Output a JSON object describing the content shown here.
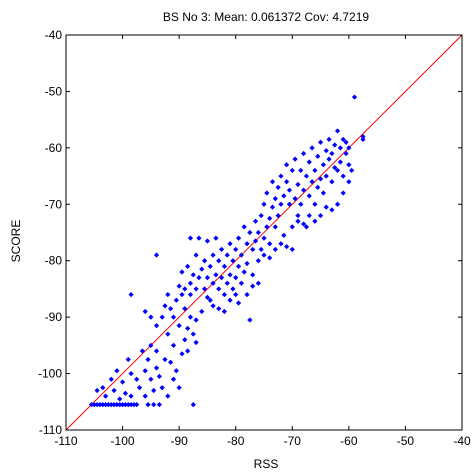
{
  "chart_data": {
    "type": "scatter",
    "title": "BS No 3: Mean: 0.061372 Cov: 4.7219",
    "xlabel": "RSS",
    "ylabel": "SCORE",
    "xlim": [
      -110,
      -40
    ],
    "ylim": [
      -110,
      -40
    ],
    "xticks": [
      -110,
      -100,
      -90,
      -80,
      -70,
      -60,
      -50,
      -40
    ],
    "yticks": [
      -110,
      -100,
      -90,
      -80,
      -70,
      -60,
      -50,
      -40
    ],
    "grid": false,
    "marker_color": "#0000ff",
    "reference_line": {
      "from": [
        -110,
        -110
      ],
      "to": [
        -40,
        -40
      ],
      "color": "#ff0000"
    },
    "points": [
      [
        -105.5,
        -105.5
      ],
      [
        -105,
        -105.5
      ],
      [
        -104.5,
        -105.5
      ],
      [
        -104,
        -105.5
      ],
      [
        -103.5,
        -105.5
      ],
      [
        -103,
        -105.5
      ],
      [
        -102.5,
        -105.5
      ],
      [
        -102,
        -105.5
      ],
      [
        -101.5,
        -105.5
      ],
      [
        -101,
        -105.5
      ],
      [
        -100.5,
        -105.5
      ],
      [
        -100,
        -105.5
      ],
      [
        -99.5,
        -105.5
      ],
      [
        -99,
        -105.5
      ],
      [
        -98.5,
        -105.5
      ],
      [
        -98,
        -105.5
      ],
      [
        -97.5,
        -105.5
      ],
      [
        -95.5,
        -105.5
      ],
      [
        -94.5,
        -105.5
      ],
      [
        -93.5,
        -105.5
      ],
      [
        -87.5,
        -105.5
      ],
      [
        -104.5,
        -103
      ],
      [
        -103.5,
        -102.5
      ],
      [
        -103,
        -104
      ],
      [
        -102,
        -101
      ],
      [
        -101.5,
        -103
      ],
      [
        -100.5,
        -104.5
      ],
      [
        -101,
        -99.5
      ],
      [
        -100,
        -101.5
      ],
      [
        -99.5,
        -103.5
      ],
      [
        -99,
        -97.5
      ],
      [
        -98.5,
        -100
      ],
      [
        -98.5,
        -104
      ],
      [
        -97.5,
        -101
      ],
      [
        -97,
        -102.5
      ],
      [
        -96.5,
        -96
      ],
      [
        -96,
        -99.5
      ],
      [
        -96,
        -104
      ],
      [
        -95.5,
        -97.5
      ],
      [
        -95,
        -101
      ],
      [
        -95,
        -95
      ],
      [
        -94.5,
        -103
      ],
      [
        -94,
        -99
      ],
      [
        -94,
        -96
      ],
      [
        -93.5,
        -100.5
      ],
      [
        -93,
        -102.5
      ],
      [
        -92.5,
        -97.5
      ],
      [
        -92,
        -93
      ],
      [
        -92,
        -104
      ],
      [
        -91.5,
        -98
      ],
      [
        -91,
        -101
      ],
      [
        -91,
        -95
      ],
      [
        -90.5,
        -99.5
      ],
      [
        -90,
        -91.5
      ],
      [
        -90,
        -102.5
      ],
      [
        -89.5,
        -96.5
      ],
      [
        -89,
        -94
      ],
      [
        -89,
        -88.5
      ],
      [
        -88.5,
        -92
      ],
      [
        -88.5,
        -96
      ],
      [
        -88,
        -90
      ],
      [
        -88,
        -86
      ],
      [
        -87.5,
        -93
      ],
      [
        -87,
        -94.5
      ],
      [
        -87,
        -90.5
      ],
      [
        -98.5,
        -86
      ],
      [
        -96,
        -89
      ],
      [
        -95,
        -90
      ],
      [
        -94,
        -91.5
      ],
      [
        -94,
        -79
      ],
      [
        -93,
        -90
      ],
      [
        -92.5,
        -88
      ],
      [
        -92,
        -86
      ],
      [
        -91.5,
        -88.5
      ],
      [
        -91,
        -90
      ],
      [
        -90.5,
        -87
      ],
      [
        -90,
        -84.5
      ],
      [
        -89.5,
        -86
      ],
      [
        -89.5,
        -82
      ],
      [
        -89,
        -85
      ],
      [
        -88.5,
        -81
      ],
      [
        -88,
        -84
      ],
      [
        -88,
        -76
      ],
      [
        -87.5,
        -82.5
      ],
      [
        -87,
        -85
      ],
      [
        -87,
        -79
      ],
      [
        -86.5,
        -83
      ],
      [
        -86.5,
        -76
      ],
      [
        -86,
        -81.5
      ],
      [
        -85.5,
        -85
      ],
      [
        -85.5,
        -80
      ],
      [
        -85,
        -83
      ],
      [
        -85,
        -76.5
      ],
      [
        -84.5,
        -81
      ],
      [
        -84.5,
        -87
      ],
      [
        -84,
        -84
      ],
      [
        -84,
        -79
      ],
      [
        -83.5,
        -82.5
      ],
      [
        -83.5,
        -76
      ],
      [
        -83,
        -80
      ],
      [
        -83,
        -85
      ],
      [
        -82.5,
        -83
      ],
      [
        -82.5,
        -78
      ],
      [
        -82,
        -81
      ],
      [
        -82,
        -86
      ],
      [
        -81.5,
        -79
      ],
      [
        -81.5,
        -84
      ],
      [
        -81,
        -77
      ],
      [
        -81,
        -82.5
      ],
      [
        -80.5,
        -80
      ],
      [
        -80.5,
        -85
      ],
      [
        -80,
        -78
      ],
      [
        -80,
        -83
      ],
      [
        -79.5,
        -76
      ],
      [
        -79.5,
        -81
      ],
      [
        -79,
        -84
      ],
      [
        -79,
        -79
      ],
      [
        -78.5,
        -74
      ],
      [
        -78.5,
        -82
      ],
      [
        -78,
        -77
      ],
      [
        -78,
        -80.5
      ],
      [
        -77.5,
        -75
      ],
      [
        -77.5,
        -90.5
      ],
      [
        -77,
        -78
      ],
      [
        -77,
        -82.5
      ],
      [
        -76.5,
        -73
      ],
      [
        -76.5,
        -76.5
      ],
      [
        -76,
        -80
      ],
      [
        -76,
        -75
      ],
      [
        -75.5,
        -72
      ],
      [
        -75.5,
        -78
      ],
      [
        -75,
        -76
      ],
      [
        -75,
        -70
      ],
      [
        -74.5,
        -74
      ],
      [
        -74.5,
        -68
      ],
      [
        -74,
        -72.5
      ],
      [
        -74,
        -77
      ],
      [
        -73.5,
        -70.5
      ],
      [
        -73.5,
        -66
      ],
      [
        -73,
        -74
      ],
      [
        -73,
        -69
      ],
      [
        -72.5,
        -67
      ],
      [
        -72.5,
        -72
      ],
      [
        -72,
        -65
      ],
      [
        -72,
        -70
      ],
      [
        -71.5,
        -68.5
      ],
      [
        -71.5,
        -75.5
      ],
      [
        -71,
        -66
      ],
      [
        -71,
        -63
      ],
      [
        -70.5,
        -70
      ],
      [
        -70.5,
        -67.5
      ],
      [
        -70,
        -64
      ],
      [
        -70,
        -74
      ],
      [
        -69.5,
        -69
      ],
      [
        -69.5,
        -62
      ],
      [
        -69,
        -66.5
      ],
      [
        -69,
        -72
      ],
      [
        -68.5,
        -64
      ],
      [
        -68.5,
        -70
      ],
      [
        -68,
        -67.5
      ],
      [
        -68,
        -61
      ],
      [
        -67.5,
        -65
      ],
      [
        -67.5,
        -74
      ],
      [
        -67,
        -62.5
      ],
      [
        -67,
        -68.5
      ],
      [
        -66.5,
        -66
      ],
      [
        -66.5,
        -60
      ],
      [
        -66,
        -64
      ],
      [
        -66,
        -70
      ],
      [
        -65.5,
        -61.5
      ],
      [
        -65.5,
        -67
      ],
      [
        -65,
        -59
      ],
      [
        -65,
        -65.5
      ],
      [
        -64.5,
        -63
      ],
      [
        -64.5,
        -68
      ],
      [
        -64,
        -60.5
      ],
      [
        -64,
        -65
      ],
      [
        -63.5,
        -58.5
      ],
      [
        -63.5,
        -62
      ],
      [
        -63,
        -61
      ],
      [
        -63,
        -66
      ],
      [
        -62.5,
        -59.5
      ],
      [
        -62.5,
        -63.5
      ],
      [
        -62,
        -57
      ],
      [
        -62,
        -64
      ],
      [
        -61.5,
        -60
      ],
      [
        -61.5,
        -62.5
      ],
      [
        -61,
        -58.5
      ],
      [
        -61,
        -65
      ],
      [
        -60.5,
        -61
      ],
      [
        -60.5,
        -59
      ],
      [
        -60,
        -60
      ],
      [
        -60,
        -63
      ],
      [
        -59.5,
        -64
      ],
      [
        -59,
        -51
      ],
      [
        -57.5,
        -58
      ],
      [
        -57.5,
        -58.5
      ],
      [
        -86,
        -89
      ],
      [
        -85,
        -86.5
      ],
      [
        -84,
        -88
      ],
      [
        -83,
        -88.5
      ],
      [
        -82,
        -89
      ],
      [
        -81,
        -87
      ],
      [
        -80,
        -86
      ],
      [
        -79.5,
        -87.5
      ],
      [
        -78,
        -86
      ],
      [
        -77,
        -84.5
      ],
      [
        -76,
        -84
      ],
      [
        -75,
        -79
      ],
      [
        -74,
        -79.5
      ],
      [
        -73,
        -78
      ],
      [
        -72,
        -77
      ],
      [
        -71,
        -77.5
      ],
      [
        -70,
        -78
      ],
      [
        -69,
        -73
      ],
      [
        -68,
        -73.5
      ],
      [
        -67,
        -72
      ],
      [
        -66,
        -73
      ],
      [
        -65,
        -72
      ],
      [
        -64,
        -70.5
      ],
      [
        -63,
        -71
      ],
      [
        -62,
        -70
      ],
      [
        -61,
        -68
      ],
      [
        -60,
        -66
      ]
    ]
  }
}
